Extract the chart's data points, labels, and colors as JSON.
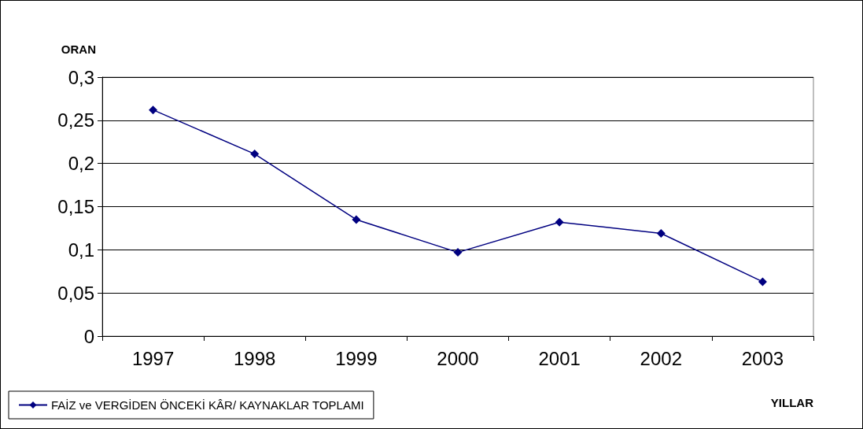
{
  "chart_data": {
    "type": "line",
    "xlabel": "YILLAR",
    "ylabel": "ORAN",
    "categories": [
      "1997",
      "1998",
      "1999",
      "2000",
      "2001",
      "2002",
      "2003"
    ],
    "series": [
      {
        "name": "FAİZ ve VERGİDEN ÖNCEKİ KÂR/ KAYNAKLAR TOPLAMI",
        "color": "#000080",
        "values": [
          0.262,
          0.211,
          0.135,
          0.097,
          0.132,
          0.119,
          0.063
        ]
      }
    ],
    "ylim": [
      0,
      0.3
    ],
    "yticks": [
      {
        "value": 0,
        "label": "0"
      },
      {
        "value": 0.05,
        "label": "0,05"
      },
      {
        "value": 0.1,
        "label": "0,1"
      },
      {
        "value": 0.15,
        "label": "0,15"
      },
      {
        "value": 0.2,
        "label": "0,2"
      },
      {
        "value": 0.25,
        "label": "0,25"
      },
      {
        "value": 0.3,
        "label": "0,3"
      }
    ],
    "grid": "y",
    "legend": "bottom left",
    "marker": "diamond",
    "line_style": "solid"
  }
}
